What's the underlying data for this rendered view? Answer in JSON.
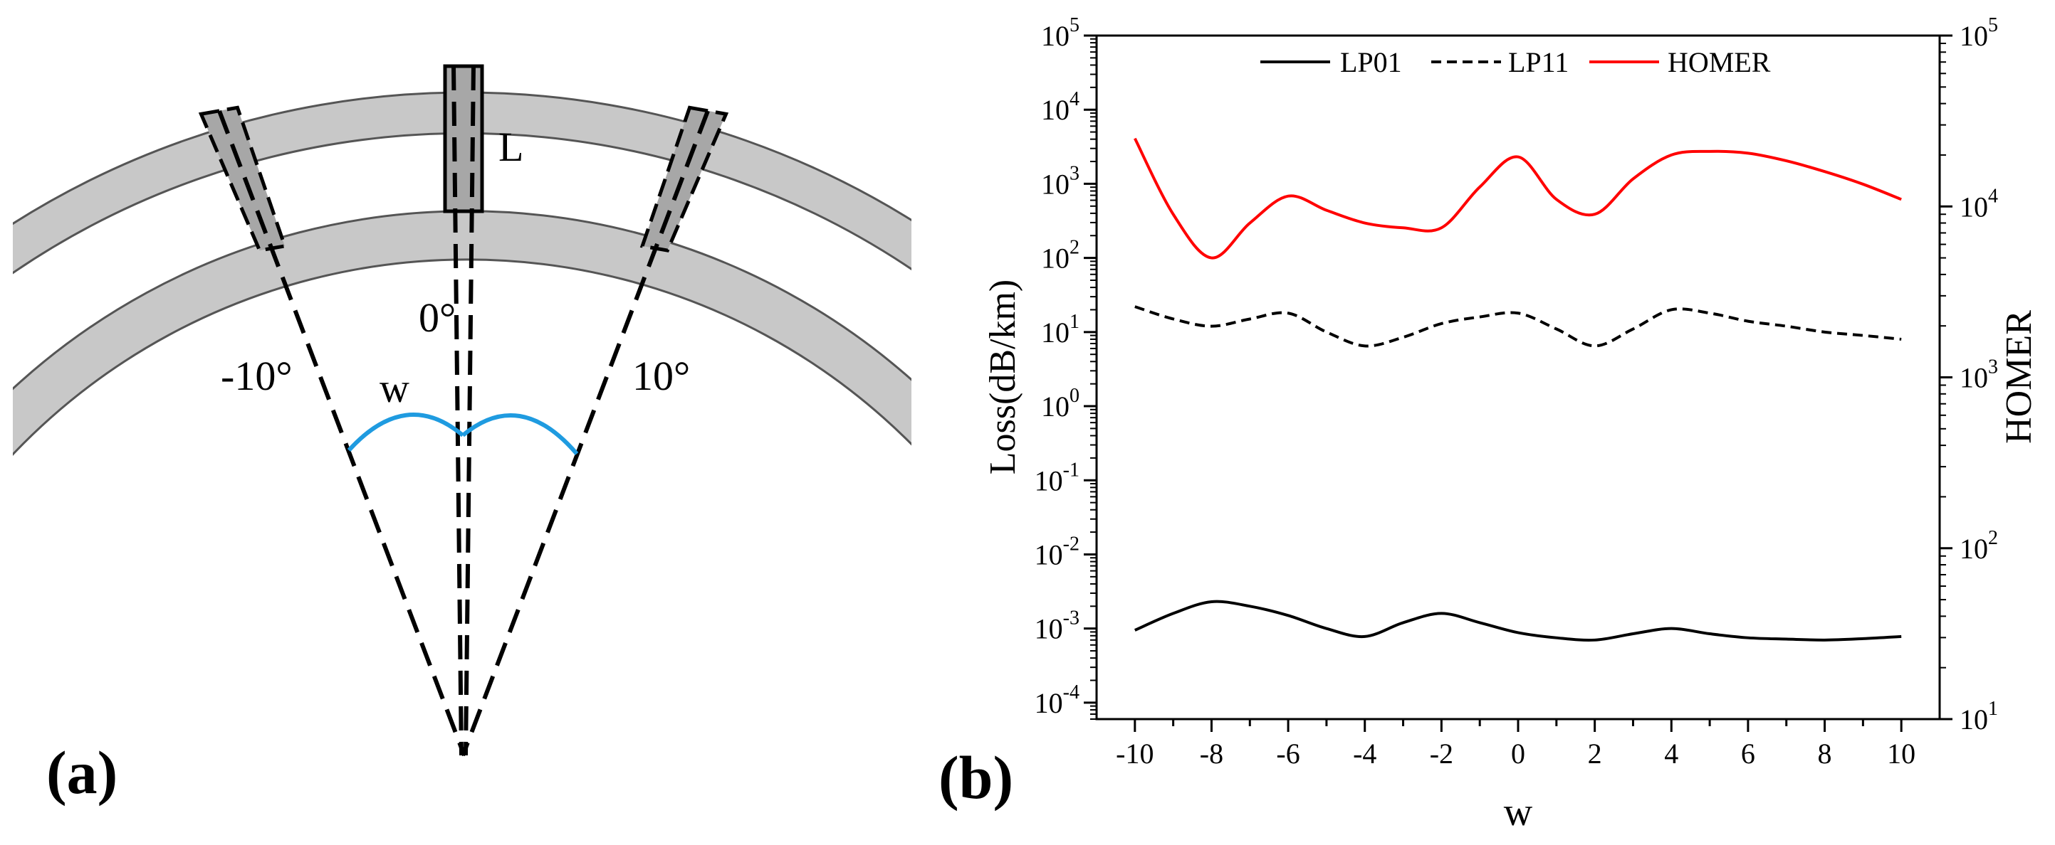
{
  "panel_a": {
    "label": "(a)",
    "angle_left": "-10°",
    "angle_center": "0°",
    "angle_right": "10°",
    "width_label": "w",
    "length_label": "L",
    "colors": {
      "ring": "#c8c8c8",
      "ring_edge": "#555555",
      "bar": "#a7a7a7",
      "arc": "#1f9be0"
    }
  },
  "panel_b": {
    "label": "(b)"
  },
  "chart_data": {
    "type": "line",
    "xlabel": "w",
    "ylabel": "Loss(dB/km)",
    "y2label": "HOMER",
    "x_ticks": [
      "-10",
      "-8",
      "-6",
      "-4",
      "-2",
      "0",
      "2",
      "4",
      "6",
      "8",
      "10"
    ],
    "xlim": [
      -11,
      11
    ],
    "y_scale": "log",
    "ylim": [
      6e-05,
      100000
    ],
    "y_tick_exponents": [
      "5",
      "4",
      "3",
      "2",
      "1",
      "0",
      "-1",
      "-2",
      "-3",
      "-4"
    ],
    "y2_scale": "log",
    "y2lim": [
      10,
      100000
    ],
    "y2_tick_exponents": [
      "5",
      "4",
      "3",
      "2",
      "1"
    ],
    "legend_position": "top",
    "series": [
      {
        "name": "LP01",
        "axis": "left",
        "style": "solid",
        "color": "#000000",
        "x": [
          -10,
          -9,
          -8,
          -7,
          -6,
          -5,
          -4,
          -3,
          -2,
          -1,
          0,
          1,
          2,
          3,
          4,
          5,
          6,
          7,
          8,
          9,
          10
        ],
        "y": [
          0.00095,
          0.0016,
          0.0023,
          0.002,
          0.0015,
          0.001,
          0.00078,
          0.0012,
          0.0016,
          0.0012,
          0.00088,
          0.00075,
          0.0007,
          0.00085,
          0.001,
          0.00085,
          0.00075,
          0.00072,
          0.0007,
          0.00073,
          0.00078
        ]
      },
      {
        "name": "LP11",
        "axis": "left",
        "style": "dashed",
        "color": "#000000",
        "x": [
          -10,
          -9,
          -8,
          -7,
          -6,
          -5,
          -4,
          -3,
          -2,
          -1,
          0,
          1,
          2,
          3,
          4,
          5,
          6,
          7,
          8,
          9,
          10
        ],
        "y": [
          22,
          15,
          12,
          15,
          18,
          10,
          6.5,
          8.5,
          13,
          16,
          18,
          11,
          6.5,
          11,
          20,
          18,
          14,
          12,
          10,
          9,
          8
        ]
      },
      {
        "name": "HOMER",
        "axis": "right",
        "style": "solid",
        "color": "#ff0000",
        "x": [
          -10,
          -9,
          -8,
          -7,
          -6,
          -5,
          -4,
          -3,
          -2,
          -1,
          0,
          1,
          2,
          3,
          4,
          5,
          6,
          7,
          8,
          9,
          10
        ],
        "y": [
          25000,
          9000,
          5000,
          8000,
          11500,
          9500,
          8000,
          7500,
          7500,
          13000,
          19500,
          11000,
          9000,
          14500,
          20000,
          21000,
          20500,
          18500,
          16000,
          13500,
          11000
        ]
      }
    ]
  }
}
